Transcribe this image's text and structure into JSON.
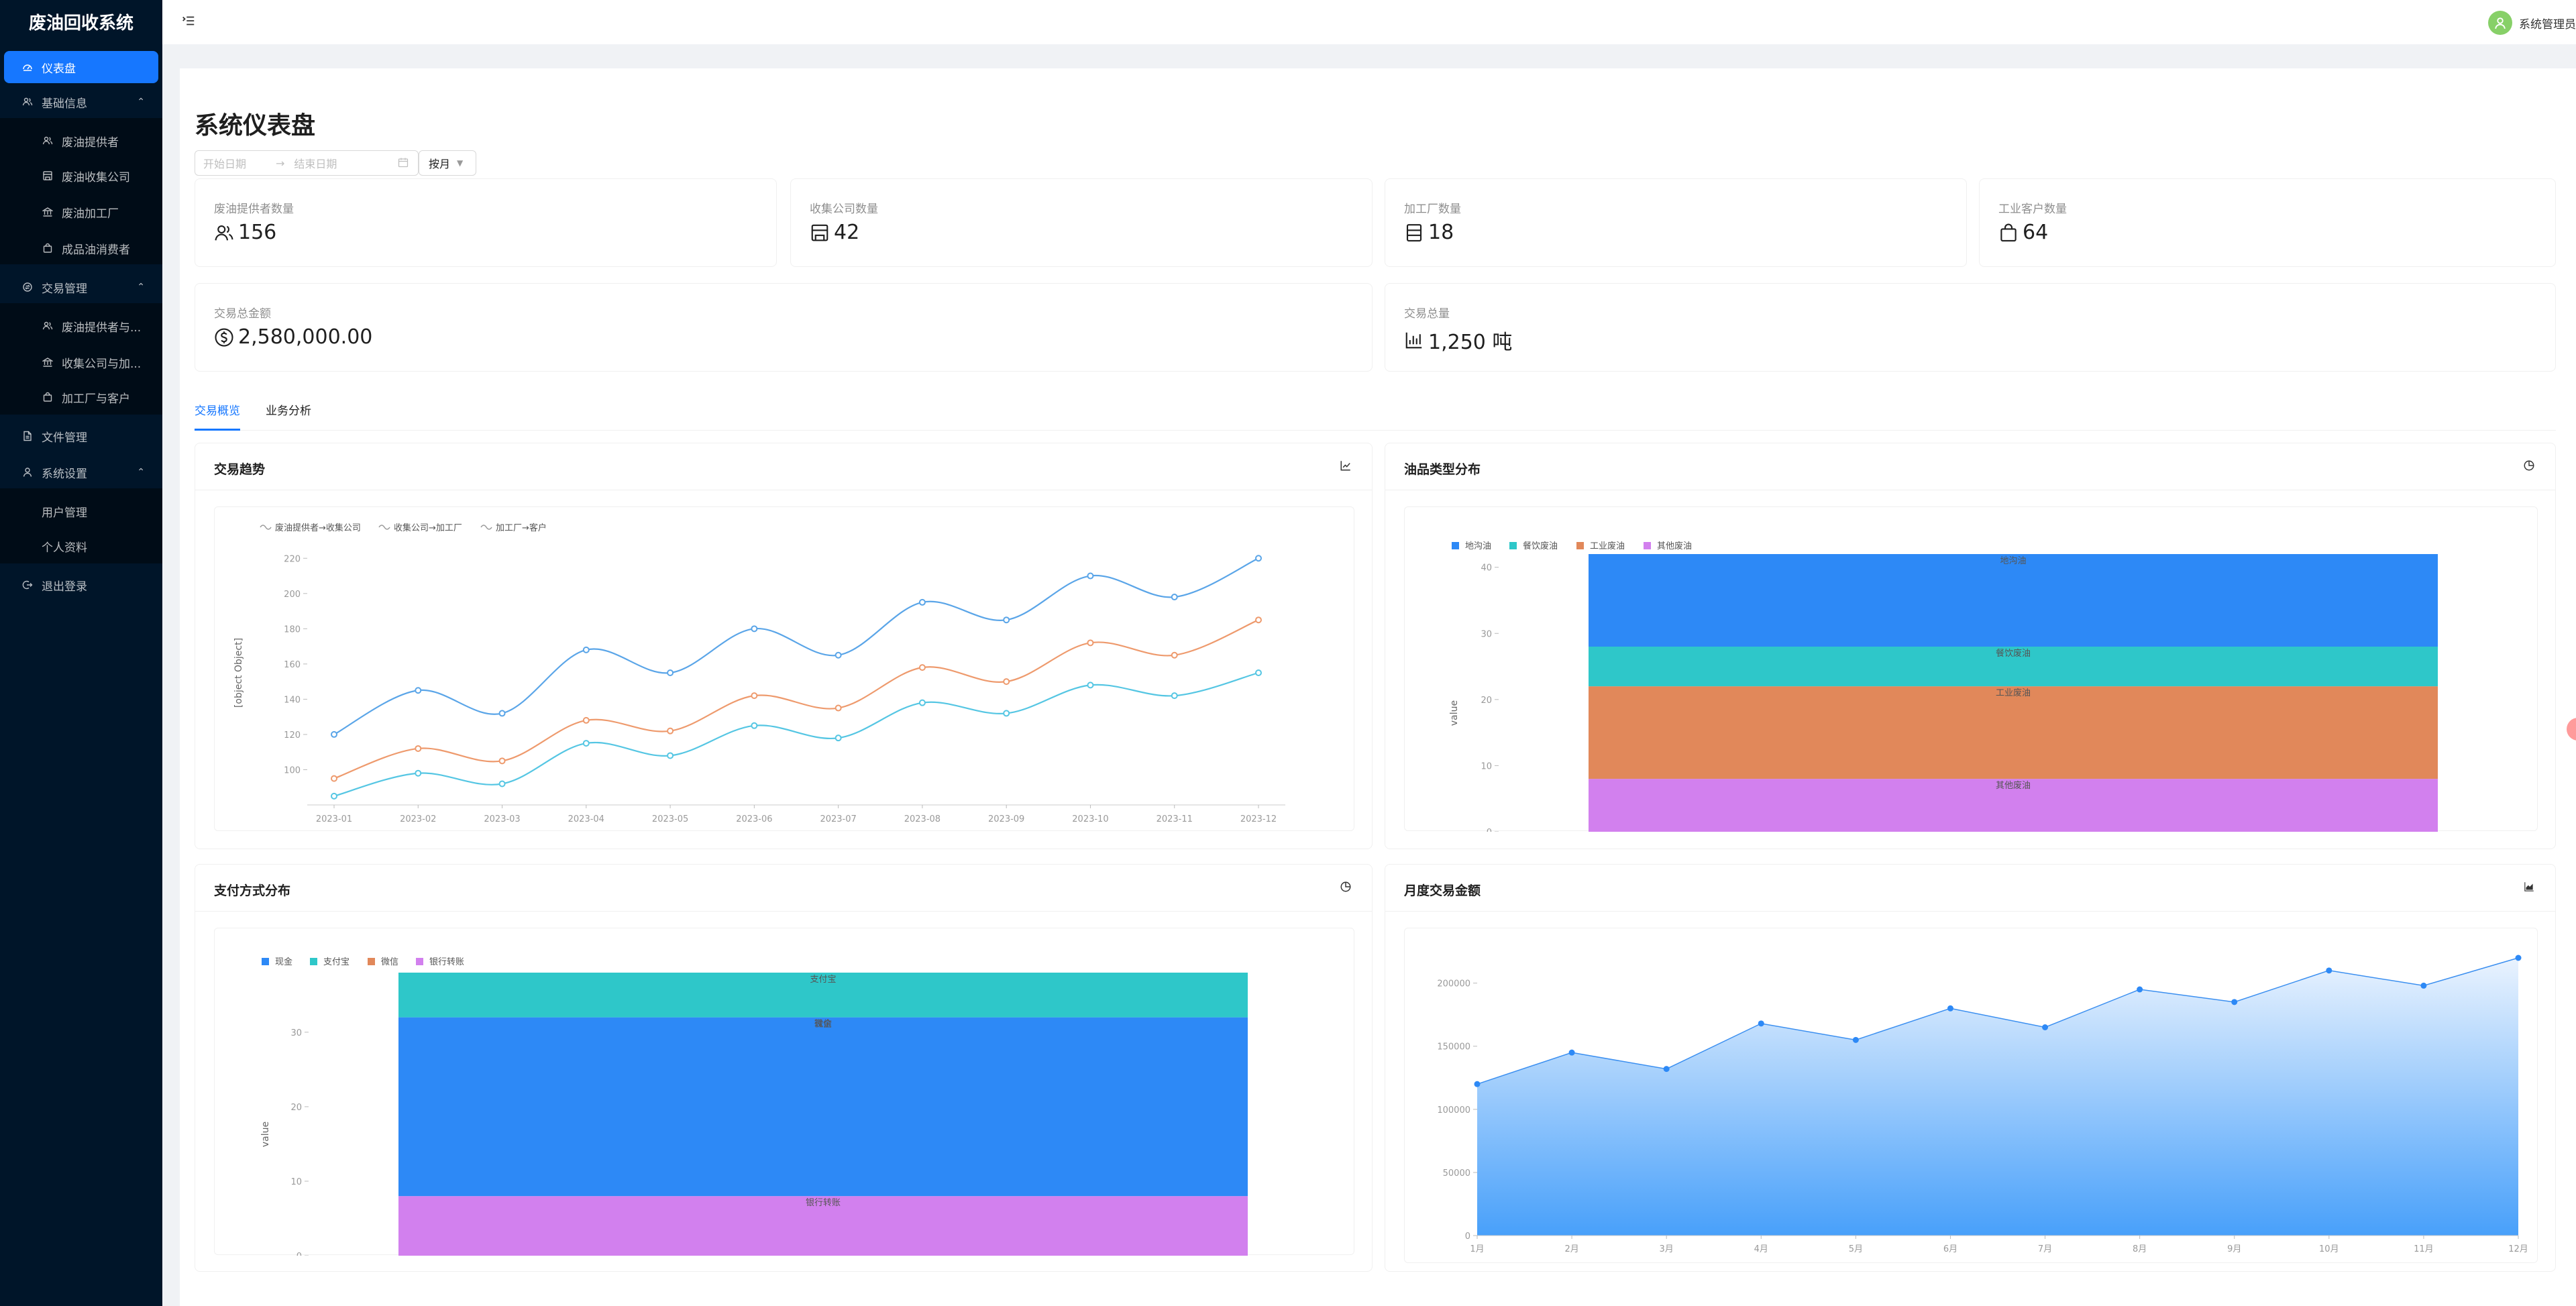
{
  "app": {
    "title": "废油回收系统"
  },
  "sidebar": {
    "dashboard": "仪表盘",
    "basic_info": "基础信息",
    "basic_items": [
      "废油提供者",
      "废油收集公司",
      "废油加工厂",
      "成品油消费者"
    ],
    "transactions": "交易管理",
    "transaction_items": [
      "废油提供者与...",
      "收集公司与加...",
      "加工厂与客户"
    ],
    "files": "文件管理",
    "settings": "系统设置",
    "settings_items": [
      "用户管理",
      "个人资料"
    ],
    "logout": "退出登录"
  },
  "header": {
    "user_name": "系统管理员"
  },
  "page": {
    "title": "系统仪表盘",
    "start_placeholder": "开始日期",
    "end_placeholder": "结束日期",
    "range_arrow": "→",
    "mode": "按月"
  },
  "stats": [
    {
      "title": "废油提供者数量",
      "value": "156",
      "icon": "user-group-icon"
    },
    {
      "title": "收集公司数量",
      "value": "42",
      "icon": "shop-icon"
    },
    {
      "title": "加工厂数量",
      "value": "18",
      "icon": "database-icon"
    },
    {
      "title": "工业客户数量",
      "value": "64",
      "icon": "shopping-bag-icon"
    },
    {
      "title": "交易总金额",
      "value": "2,580,000.00",
      "icon": "dollar-icon"
    },
    {
      "title": "交易总量",
      "value": "1,250 吨",
      "icon": "bar-chart-icon"
    }
  ],
  "tabs": [
    "交易概览",
    "业务分析"
  ],
  "cards": {
    "trend": "交易趋势",
    "oil_types": "油品类型分布",
    "payment": "支付方式分布",
    "monthly": "月度交易金额"
  },
  "colors": {
    "primary": "#1677ff",
    "sidebar": "#001529",
    "blue": "#2d89f6",
    "teal": "#2ec7c9",
    "orange": "#e1885a",
    "purple": "#d280ee",
    "line_blue": "#5aa5e8",
    "line_orange": "#ee9a6d",
    "line_teal": "#55c6e3"
  },
  "chart_data": [
    {
      "type": "line",
      "title": "交易趋势",
      "categories": [
        "2023-01",
        "2023-02",
        "2023-03",
        "2023-04",
        "2023-05",
        "2023-06",
        "2023-07",
        "2023-08",
        "2023-09",
        "2023-10",
        "2023-11",
        "2023-12"
      ],
      "series": [
        {
          "name": "废油提供者→收集公司",
          "values": [
            120,
            145,
            132,
            168,
            155,
            180,
            165,
            195,
            185,
            210,
            198,
            220
          ]
        },
        {
          "name": "收集公司→加工厂",
          "values": [
            95,
            112,
            105,
            128,
            122,
            142,
            135,
            158,
            150,
            172,
            165,
            185
          ]
        },
        {
          "name": "加工厂→客户",
          "values": [
            85,
            98,
            92,
            115,
            108,
            125,
            118,
            138,
            132,
            148,
            142,
            155
          ]
        }
      ],
      "xlabel": "[object Object]",
      "ylabel": "[object Object]",
      "yticks": [
        100,
        120,
        140,
        160,
        180,
        200,
        220
      ],
      "smooth": true,
      "legend": "top-left"
    },
    {
      "type": "bar",
      "stacked": true,
      "title": "油品类型分布",
      "series": [
        {
          "name": "地沟油",
          "value": 14
        },
        {
          "name": "餐饮废油",
          "value": 6
        },
        {
          "name": "工业废油",
          "value": 14
        },
        {
          "name": "其他废油",
          "value": 8
        }
      ],
      "ylabel": "value",
      "ylim": [
        0,
        42
      ],
      "yticks": [
        0,
        10,
        20,
        30,
        40
      ],
      "legend": "top-left"
    },
    {
      "type": "bar",
      "stacked": true,
      "title": "支付方式分布",
      "series": [
        {
          "name": "现金",
          "value": 24
        },
        {
          "name": "支付宝",
          "value": 6
        },
        {
          "name": "微信",
          "value": 0
        },
        {
          "name": "银行转账",
          "value": 8
        }
      ],
      "ylabel": "value",
      "ylim": [
        0,
        38
      ],
      "yticks": [
        0,
        10,
        20,
        30
      ],
      "legend": "top-left"
    },
    {
      "type": "area",
      "title": "月度交易金额",
      "categories": [
        "1月",
        "2月",
        "3月",
        "4月",
        "5月",
        "6月",
        "7月",
        "8月",
        "9月",
        "10月",
        "11月",
        "12月"
      ],
      "values": [
        120000,
        145000,
        132000,
        168000,
        155000,
        180000,
        165000,
        195000,
        185000,
        210000,
        198000,
        220000
      ],
      "ylim": [
        0,
        220000
      ],
      "yticks": [
        0,
        50000,
        100000,
        150000,
        200000
      ]
    }
  ]
}
